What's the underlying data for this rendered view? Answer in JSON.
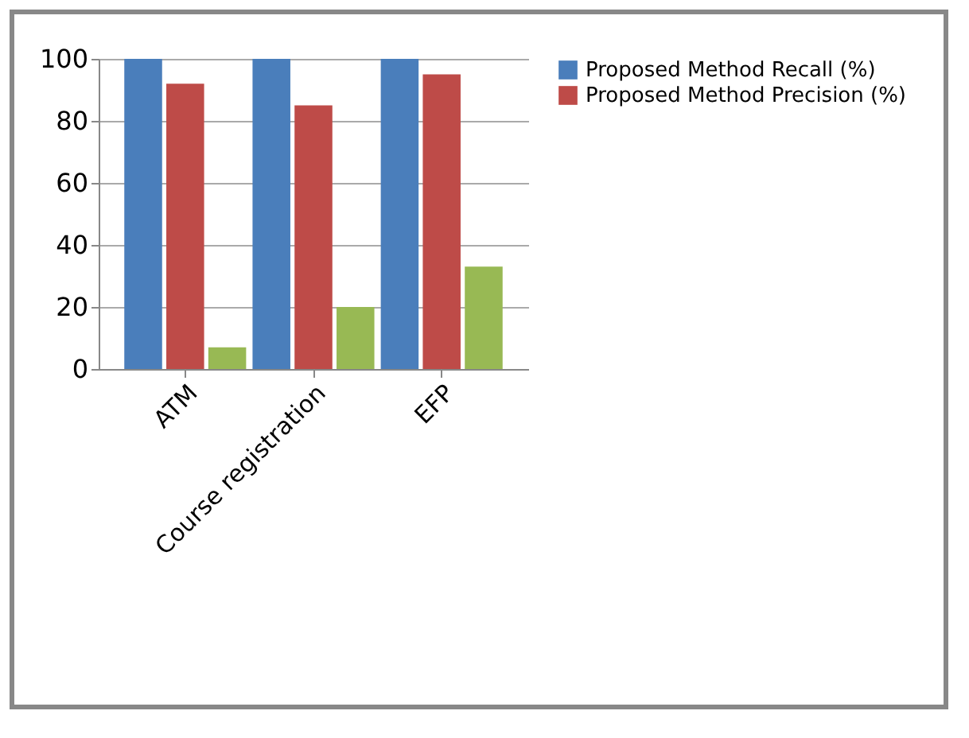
{
  "chart_data": {
    "type": "bar",
    "categories": [
      "ATM",
      "Course registration",
      "EFP"
    ],
    "series": [
      {
        "name": "Proposed Method Recall (%)",
        "color": "#4a7ebb",
        "values": [
          100,
          100,
          100
        ]
      },
      {
        "name": "Proposed Method Precision (%)",
        "color": "#be4b48",
        "values": [
          92,
          85,
          95
        ]
      },
      {
        "color": "#98b954",
        "values": [
          7,
          20,
          33
        ]
      }
    ],
    "ylim": [
      0,
      100
    ],
    "yticks": [
      0,
      20,
      40,
      60,
      80,
      100
    ],
    "grid": "y",
    "legend": "right"
  }
}
